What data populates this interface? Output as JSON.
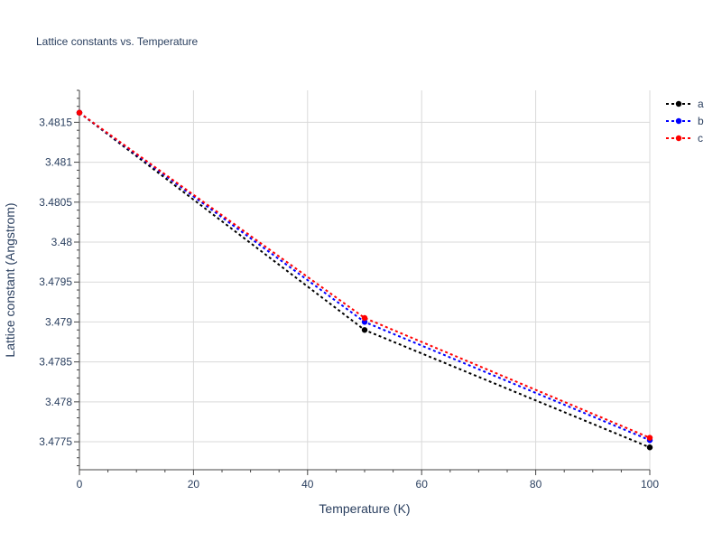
{
  "chart_data": {
    "type": "line",
    "title": "Lattice constants vs. Temperature",
    "xlabel": "Temperature (K)",
    "ylabel": "Lattice constant (Angstrom)",
    "x": [
      0,
      50,
      100
    ],
    "xlim": [
      0,
      100
    ],
    "ylim": [
      3.47715,
      3.4819
    ],
    "x_ticks": [
      0,
      20,
      40,
      60,
      80,
      100
    ],
    "x_tick_labels": [
      "0",
      "20",
      "40",
      "60",
      "80",
      "100"
    ],
    "y_ticks": [
      3.4775,
      3.478,
      3.4785,
      3.479,
      3.4795,
      3.48,
      3.4805,
      3.481,
      3.4815
    ],
    "y_tick_labels": [
      "3.4775",
      "3.478",
      "3.4785",
      "3.479",
      "3.4795",
      "3.48",
      "3.4805",
      "3.481",
      "3.4815"
    ],
    "grid": true,
    "legend_position": "top-right",
    "series": [
      {
        "name": "a",
        "color": "#000000",
        "values": [
          3.48162,
          3.4789,
          3.47743
        ]
      },
      {
        "name": "b",
        "color": "#0000ff",
        "values": [
          3.48162,
          3.479,
          3.47752
        ]
      },
      {
        "name": "c",
        "color": "#ff0000",
        "values": [
          3.48162,
          3.47905,
          3.47755
        ]
      }
    ]
  }
}
